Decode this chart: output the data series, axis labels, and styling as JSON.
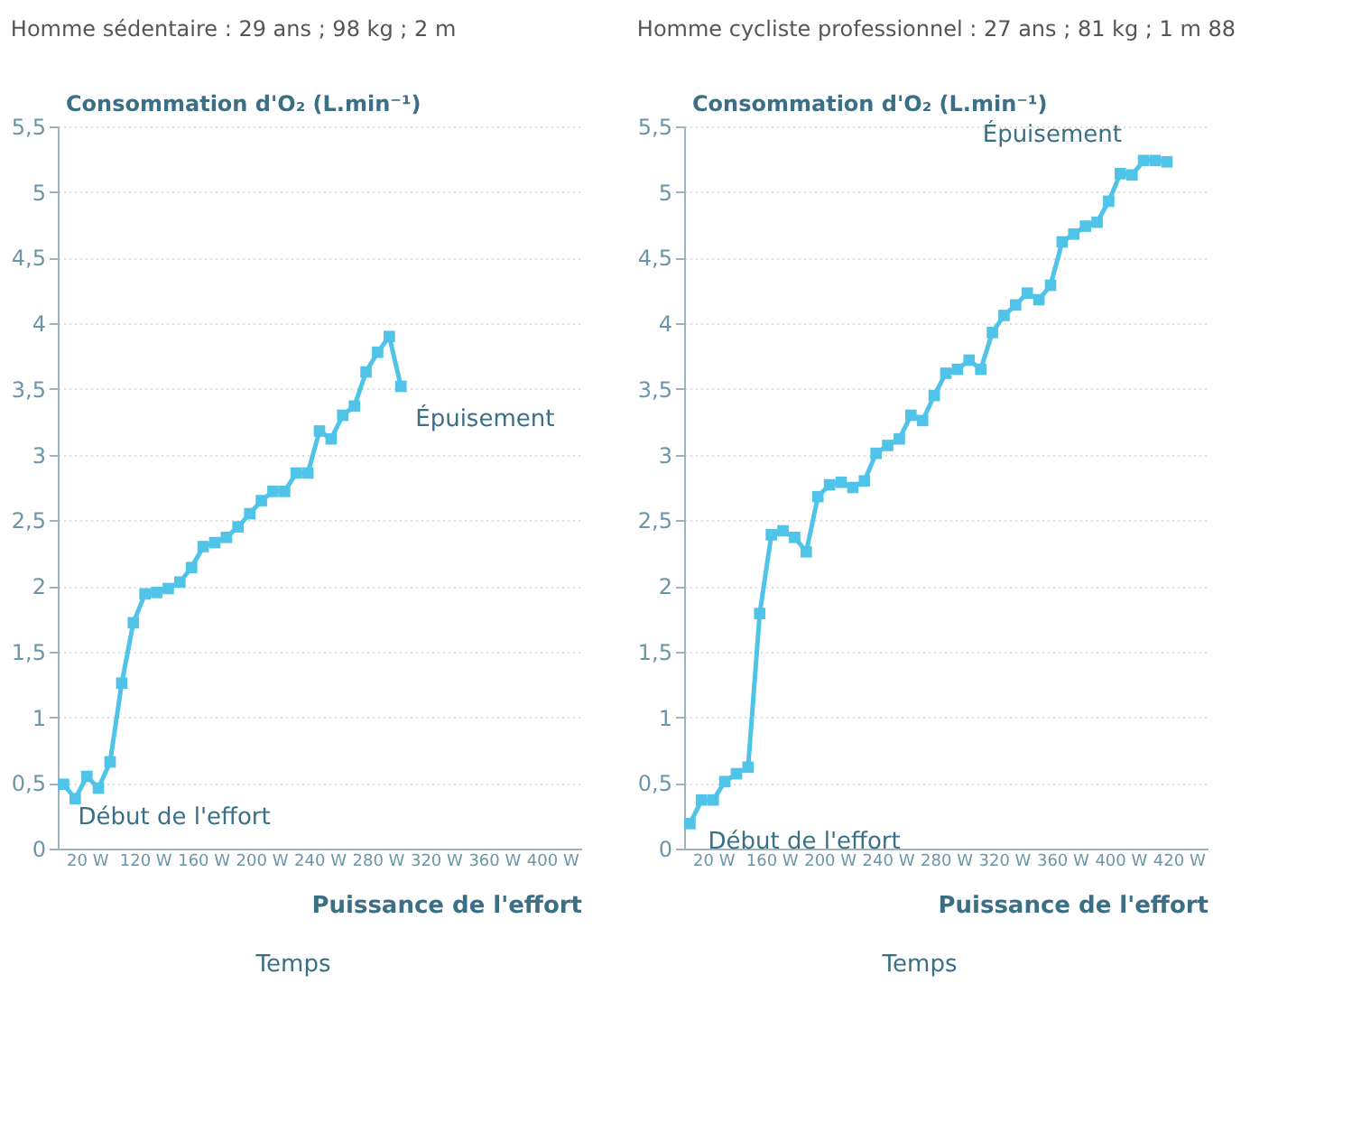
{
  "chart_data": [
    {
      "type": "line",
      "title": "Homme sédentaire : 29 ans ; 98 kg ; 2 m",
      "xlabel": "Puissance de l'effort",
      "ylabel": "Consommation d'O₂ (L.min⁻¹)",
      "categories": [
        null,
        null,
        "20 W",
        null,
        null,
        null,
        null,
        "120 W",
        null,
        null,
        null,
        null,
        "160 W",
        null,
        null,
        null,
        null,
        "200 W",
        null,
        null,
        null,
        null,
        "240 W",
        null,
        null,
        null,
        null,
        "280 W",
        null,
        null,
        null,
        null,
        "320 W",
        null,
        null,
        null,
        null,
        "360 W",
        null,
        null,
        null,
        null,
        "400 W",
        null,
        null
      ],
      "series": [
        {
          "color": "#4fc3e8",
          "values": [
            0.49,
            0.38,
            0.55,
            0.46,
            0.66,
            1.26,
            1.72,
            1.94,
            1.95,
            1.98,
            2.03,
            2.14,
            2.3,
            2.33,
            2.37,
            2.45,
            2.55,
            2.65,
            2.72,
            2.72,
            2.86,
            2.86,
            3.18,
            3.12,
            3.3,
            3.37,
            3.63,
            3.78,
            3.9,
            3.52,
            null,
            null,
            null,
            null,
            null,
            null,
            null,
            null,
            null,
            null,
            null,
            null,
            null,
            null,
            null
          ]
        }
      ],
      "ylim": [
        0,
        5.5
      ],
      "yticks": [
        0,
        {
          "value": 0.5,
          "label": "0,5"
        },
        1,
        {
          "value": 1.5,
          "label": "1,5"
        },
        2,
        {
          "value": 2.5,
          "label": "2,5"
        },
        3,
        {
          "value": 3.5,
          "label": "3,5"
        },
        4,
        {
          "value": 4.5,
          "label": "4,5"
        },
        5,
        {
          "value": 5.5,
          "label": "5,5"
        }
      ],
      "grid": "y",
      "marker": "square",
      "line_style": "solid",
      "annotations": [
        "Début de l'effort",
        "Épuisement",
        "Temps"
      ]
    },
    {
      "type": "line",
      "title": "Homme cycliste professionnel : 27 ans ; 81 kg ; 1 m 88",
      "xlabel": "Puissance de l'effort",
      "ylabel": "Consommation d'O₂ (L.min⁻¹)",
      "categories": [
        null,
        null,
        "20 W",
        null,
        null,
        null,
        null,
        "160 W",
        null,
        null,
        null,
        null,
        "200 W",
        null,
        null,
        null,
        null,
        "240 W",
        null,
        null,
        null,
        null,
        "280 W",
        null,
        null,
        null,
        null,
        "320 W",
        null,
        null,
        null,
        null,
        "360 W",
        null,
        null,
        null,
        null,
        "400 W",
        null,
        null,
        null,
        null,
        "420 W",
        null,
        null
      ],
      "series": [
        {
          "color": "#4fc3e8",
          "values": [
            0.19,
            0.37,
            0.37,
            0.51,
            0.57,
            0.62,
            1.79,
            2.39,
            2.42,
            2.37,
            2.26,
            2.68,
            2.77,
            2.79,
            2.75,
            2.8,
            3.01,
            3.07,
            3.12,
            3.3,
            3.26,
            3.45,
            3.62,
            3.65,
            3.72,
            3.65,
            3.93,
            4.06,
            4.14,
            4.23,
            4.18,
            4.29,
            4.62,
            4.68,
            4.74,
            4.77,
            4.93,
            5.14,
            5.13,
            5.24,
            5.24,
            5.23,
            null,
            null,
            null
          ]
        }
      ],
      "ylim": [
        0,
        5.5
      ],
      "yticks": [
        0,
        {
          "value": 0.5,
          "label": "0,5"
        },
        1,
        {
          "value": 1.5,
          "label": "1,5"
        },
        2,
        {
          "value": 2.5,
          "label": "2,5"
        },
        3,
        {
          "value": 3.5,
          "label": "3,5"
        },
        4,
        {
          "value": 4.5,
          "label": "4,5"
        },
        5,
        {
          "value": 5.5,
          "label": "5,5"
        }
      ],
      "grid": "y",
      "marker": "square",
      "line_style": "solid",
      "annotations": [
        "Début de l'effort",
        "Épuisement",
        "Temps"
      ]
    }
  ]
}
